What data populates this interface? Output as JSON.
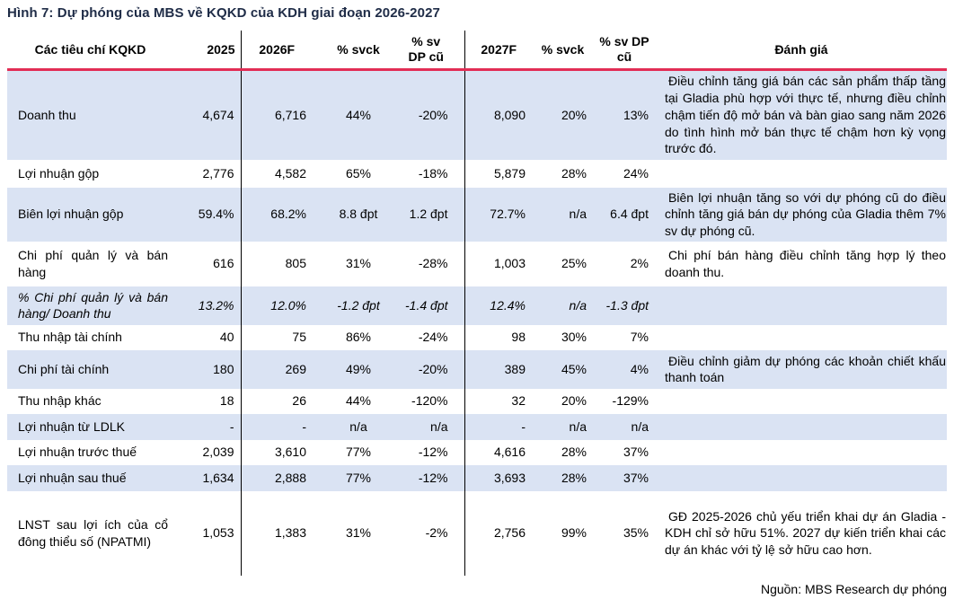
{
  "figure": {
    "title": "Hình 7: Dự phóng của MBS về KQKD của KDH giai đoạn 2026-2027",
    "source": "Nguồn: MBS Research dự phóng"
  },
  "colors": {
    "title_navy": "#1f2c47",
    "header_rule_red": "#e22d55",
    "row_stripe_blue": "#dae3f3",
    "divider_black": "#000000",
    "text": "#000000",
    "background": "#ffffff"
  },
  "table": {
    "headers": {
      "criteria": "Các tiêu chí KQKD",
      "y2025": "2025",
      "y2026f": "2026F",
      "svck_2026": "% svck",
      "dp_2026": "% sv DP cũ",
      "y2027f": "2027F",
      "svck_2027": "% svck",
      "dp_2027": "% sv DP cũ",
      "review": "Đánh giá"
    },
    "rows": [
      {
        "label": "Doanh thu",
        "v2025": "4,674",
        "v2026": "6,716",
        "svck26": "44%",
        "dp26": "-20%",
        "v2027": "8,090",
        "svck27": "20%",
        "dp27": "13%",
        "comment": "Điều chỉnh tăng giá bán các sản phẩm thấp tầng tại Gladia phù hợp với thực tế, nhưng điều chỉnh chậm tiến độ mở bán và bàn giao sang năm 2026 do tình hình mở bán thực tế chậm hơn kỳ vọng trước đó."
      },
      {
        "label": "Lợi nhuận gộp",
        "v2025": "2,776",
        "v2026": "4,582",
        "svck26": "65%",
        "dp26": "-18%",
        "v2027": "5,879",
        "svck27": "28%",
        "dp27": "24%",
        "comment": ""
      },
      {
        "label": "Biên lợi nhuận gộp",
        "v2025": "59.4%",
        "v2026": "68.2%",
        "svck26": "8.8 đpt",
        "dp26": "1.2 đpt",
        "v2027": "72.7%",
        "svck27": "n/a",
        "dp27": "6.4 đpt",
        "comment": "Biên lợi nhuận tăng so với dự phóng cũ do điều chỉnh tăng giá bán dự phóng của Gladia thêm 7% sv dự phóng cũ."
      },
      {
        "label": "Chi phí quản lý và bán hàng",
        "v2025": "616",
        "v2026": "805",
        "svck26": "31%",
        "dp26": "-28%",
        "v2027": "1,003",
        "svck27": "25%",
        "dp27": "2%",
        "comment": "Chi phí bán hàng điều chỉnh tăng hợp lý theo doanh thu."
      },
      {
        "label": "% Chi phí quản lý và bán hàng/ Doanh thu",
        "v2025": "13.2%",
        "v2026": "12.0%",
        "svck26": "-1.2 đpt",
        "dp26": "-1.4 đpt",
        "v2027": "12.4%",
        "svck27": "n/a",
        "dp27": "-1.3 đpt",
        "comment": ""
      },
      {
        "label": "Thu nhập tài chính",
        "v2025": "40",
        "v2026": "75",
        "svck26": "86%",
        "dp26": "-24%",
        "v2027": "98",
        "svck27": "30%",
        "dp27": "7%",
        "comment": ""
      },
      {
        "label": "Chi phí tài chính",
        "v2025": "180",
        "v2026": "269",
        "svck26": "49%",
        "dp26": "-20%",
        "v2027": "389",
        "svck27": "45%",
        "dp27": "4%",
        "comment": "Điều chỉnh giảm dự phóng các khoản chiết khấu thanh toán"
      },
      {
        "label": "Thu nhập khác",
        "v2025": "18",
        "v2026": "26",
        "svck26": "44%",
        "dp26": "-120%",
        "v2027": "32",
        "svck27": "20%",
        "dp27": "-129%",
        "comment": ""
      },
      {
        "label": "Lợi nhuận từ LDLK",
        "v2025": "-",
        "v2026": "-",
        "svck26": "n/a",
        "dp26": "n/a",
        "v2027": "-",
        "svck27": "n/a",
        "dp27": "n/a",
        "comment": ""
      },
      {
        "label": "Lợi nhuận trước thuế",
        "v2025": "2,039",
        "v2026": "3,610",
        "svck26": "77%",
        "dp26": "-12%",
        "v2027": "4,616",
        "svck27": "28%",
        "dp27": "37%",
        "comment": ""
      },
      {
        "label": "Lợi nhuận sau thuế",
        "v2025": "1,634",
        "v2026": "2,888",
        "svck26": "77%",
        "dp26": "-12%",
        "v2027": "3,693",
        "svck27": "28%",
        "dp27": "37%",
        "comment": ""
      },
      {
        "label": "LNST sau lợi ích của cổ đông thiểu số (NPATMI)",
        "v2025": "1,053",
        "v2026": "1,383",
        "svck26": "31%",
        "dp26": "-2%",
        "v2027": "2,756",
        "svck27": "99%",
        "dp27": "35%",
        "comment": "GĐ 2025-2026 chủ yếu triển khai dự án Gladia - KDH chỉ sở hữu 51%. 2027 dự kiến triển khai các dự án khác với tỷ lệ sở hữu cao hơn."
      }
    ]
  }
}
